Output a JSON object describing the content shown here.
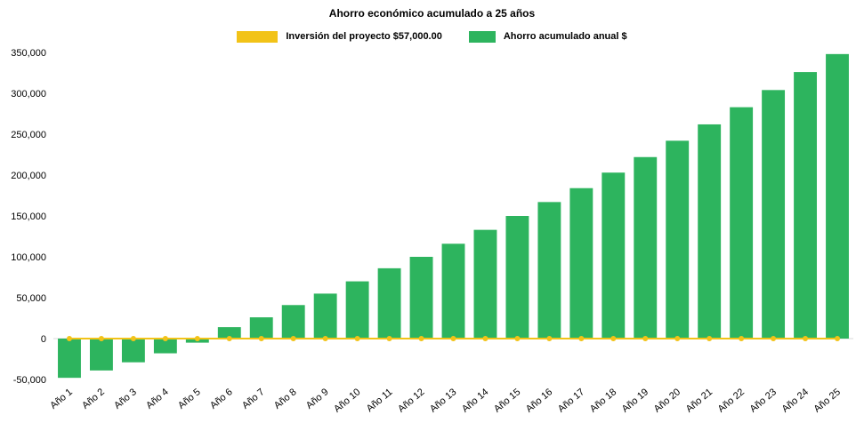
{
  "chart_data": {
    "type": "bar",
    "title": "Ahorro económico acumulado a 25 años",
    "categories": [
      "Año 1",
      "Año 2",
      "Año 3",
      "Año 4",
      "Año 5",
      "Año 6",
      "Año 7",
      "Año 8",
      "Año 9",
      "Año 10",
      "Año 11",
      "Año 12",
      "Año 13",
      "Año 14",
      "Año 15",
      "Año 16",
      "Año 17",
      "Año 18",
      "Año 19",
      "Año 20",
      "Año 21",
      "Año 22",
      "Año 23",
      "Año 24",
      "Año 25"
    ],
    "series": [
      {
        "name": "Ahorro acumulado anual $",
        "type": "bar",
        "color": "#2db45e",
        "values": [
          -48000,
          -39000,
          -29000,
          -18000,
          -5000,
          14000,
          26000,
          41000,
          55000,
          70000,
          86000,
          100000,
          116000,
          133000,
          150000,
          167000,
          184000,
          203000,
          222000,
          242000,
          262000,
          283000,
          304000,
          326000,
          348000
        ]
      },
      {
        "name": "Inversión del proyecto $57,000.00",
        "type": "line",
        "color": "#f2c318",
        "marker_color": "#f2c318",
        "values": [
          0,
          0,
          0,
          0,
          0,
          0,
          0,
          0,
          0,
          0,
          0,
          0,
          0,
          0,
          0,
          0,
          0,
          0,
          0,
          0,
          0,
          0,
          0,
          0,
          0
        ]
      }
    ],
    "ylim": [
      -50000,
      350000
    ],
    "ytick_step": 50000,
    "ytick_labels": [
      "-50,000",
      "0",
      "50,000",
      "100,000",
      "150,000",
      "200,000",
      "250,000",
      "300,000",
      "350,000"
    ],
    "grid": false,
    "legend_position": "top",
    "xlabel": "",
    "ylabel": "",
    "axis_line_color": "#d9d9d9",
    "background_color": "#ffffff"
  }
}
